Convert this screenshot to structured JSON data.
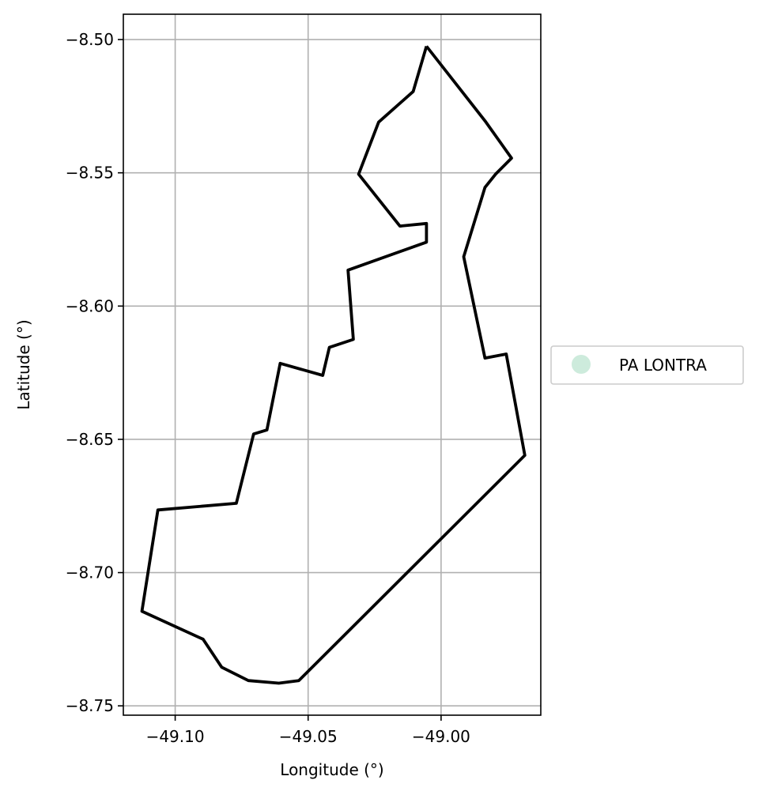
{
  "chart_data": {
    "type": "line",
    "xlabel": "Longitude (°)",
    "ylabel": "Latitude (°)",
    "xlim": [
      -49.1195,
      -48.9625
    ],
    "ylim": [
      -8.7535,
      -8.4905
    ],
    "xticks": [
      -49.1,
      -49.05,
      -49.0
    ],
    "xtick_labels": [
      "−49.10",
      "−49.05",
      "−49.00"
    ],
    "yticks": [
      -8.5,
      -8.55,
      -8.6,
      -8.65,
      -8.7,
      -8.75
    ],
    "ytick_labels": [
      "−8.50",
      "−8.55",
      "−8.60",
      "−8.65",
      "−8.70",
      "−8.75"
    ],
    "grid": true,
    "legend": {
      "placement": "center-right, outside",
      "entries": [
        {
          "label": "PA LONTRA",
          "color": "#cdebdc"
        }
      ]
    },
    "series": [
      {
        "name": "PA LONTRA",
        "color": "#000000",
        "fill": "#cdebdc",
        "x": [
          -49.0055,
          -48.9835,
          -48.9735,
          -48.9795,
          -48.9835,
          -48.9915,
          -48.9835,
          -48.9755,
          -48.9685,
          -49.0535,
          -49.061,
          -49.0725,
          -49.0825,
          -49.0895,
          -49.1125,
          -49.1065,
          -49.077,
          -49.0705,
          -49.0655,
          -49.0605,
          -49.0445,
          -49.042,
          -49.033,
          -49.035,
          -49.0055,
          -49.0055,
          -49.0155,
          -49.031,
          -49.0235,
          -49.0105,
          -49.0055
        ],
        "y": [
          -8.5025,
          -8.5305,
          -8.5445,
          -8.5505,
          -8.5555,
          -8.5815,
          -8.6195,
          -8.618,
          -8.656,
          -8.7405,
          -8.7415,
          -8.7405,
          -8.7355,
          -8.725,
          -8.7145,
          -8.6765,
          -8.674,
          -8.648,
          -8.6465,
          -8.6215,
          -8.626,
          -8.6155,
          -8.6125,
          -8.5865,
          -8.576,
          -8.569,
          -8.57,
          -8.5505,
          -8.531,
          -8.5195,
          -8.5025
        ]
      }
    ]
  }
}
